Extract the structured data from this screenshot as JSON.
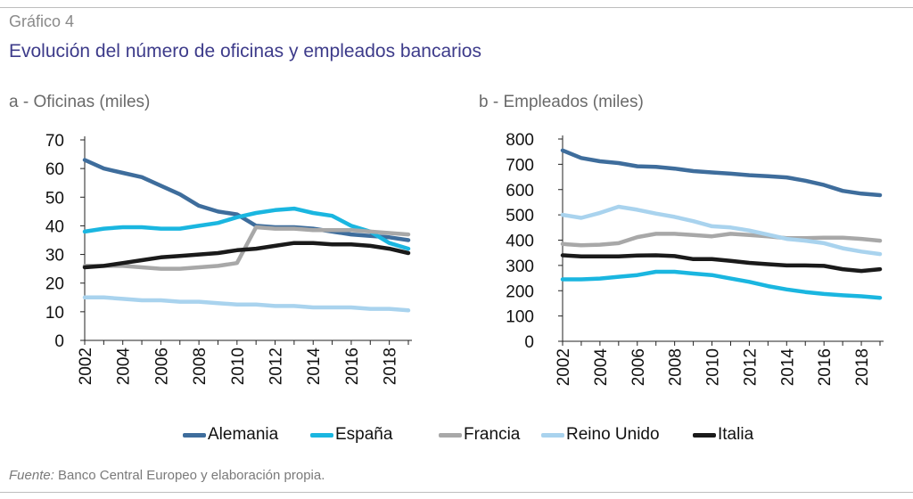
{
  "header": {
    "figure_label": "Gráfico 4",
    "title": "Evolución del número de oficinas y empleados bancarios"
  },
  "legend": [
    {
      "name": "Alemania",
      "color": "#3e6d9c"
    },
    {
      "name": "España",
      "color": "#1ab6e0"
    },
    {
      "name": "Francia",
      "color": "#a8a8a8"
    },
    {
      "name": "Reino Unido",
      "color": "#a9d3ee"
    },
    {
      "name": "Italia",
      "color": "#1a1a1a"
    }
  ],
  "footer": {
    "source_prefix": "Fuente:",
    "source_text": " Banco Central Europeo y elaboración propia."
  },
  "chart_data": [
    {
      "type": "line",
      "title": "a - Oficinas (miles)",
      "x": [
        2002,
        2003,
        2004,
        2005,
        2006,
        2007,
        2008,
        2009,
        2010,
        2011,
        2012,
        2013,
        2014,
        2015,
        2016,
        2017,
        2018,
        2019
      ],
      "x_ticks": [
        "2002",
        "2004",
        "2006",
        "2008",
        "2010",
        "2012",
        "2014",
        "2016",
        "2018"
      ],
      "ylim": [
        0,
        70
      ],
      "y_ticks": [
        0,
        10,
        20,
        30,
        40,
        50,
        60,
        70
      ],
      "grid": false,
      "series": [
        {
          "name": "Alemania",
          "values": [
            63.0,
            60.0,
            58.5,
            57.0,
            54.0,
            51.0,
            47.0,
            45.0,
            44.0,
            40.0,
            39.5,
            39.5,
            39.0,
            38.0,
            37.0,
            36.5,
            36.0,
            35.0
          ]
        },
        {
          "name": "España",
          "values": [
            38.0,
            39.0,
            39.5,
            39.5,
            39.0,
            39.0,
            40.0,
            41.0,
            43.0,
            44.5,
            45.5,
            46.0,
            44.5,
            43.5,
            40.0,
            38.0,
            34.0,
            32.0
          ]
        },
        {
          "name": "Francia",
          "values": [
            26.0,
            26.0,
            26.0,
            25.5,
            25.0,
            25.0,
            25.5,
            26.0,
            27.0,
            39.5,
            39.0,
            39.0,
            38.5,
            38.5,
            38.5,
            38.0,
            37.5,
            37.0
          ]
        },
        {
          "name": "Reino Unido",
          "values": [
            15.0,
            15.0,
            14.5,
            14.0,
            14.0,
            13.5,
            13.5,
            13.0,
            12.5,
            12.5,
            12.0,
            12.0,
            11.5,
            11.5,
            11.5,
            11.0,
            11.0,
            10.5
          ]
        },
        {
          "name": "Italia",
          "values": [
            25.5,
            26.0,
            27.0,
            28.0,
            29.0,
            29.5,
            30.0,
            30.5,
            31.5,
            32.0,
            33.0,
            34.0,
            34.0,
            33.5,
            33.5,
            33.0,
            32.0,
            30.5
          ]
        }
      ]
    },
    {
      "type": "line",
      "title": "b - Empleados (miles)",
      "x": [
        2002,
        2003,
        2004,
        2005,
        2006,
        2007,
        2008,
        2009,
        2010,
        2011,
        2012,
        2013,
        2014,
        2015,
        2016,
        2017,
        2018,
        2019
      ],
      "x_ticks": [
        "2002",
        "2004",
        "2006",
        "2008",
        "2010",
        "2012",
        "2014",
        "2016",
        "2018"
      ],
      "ylim": [
        0,
        800
      ],
      "y_ticks": [
        0,
        100,
        200,
        300,
        400,
        500,
        600,
        700,
        800
      ],
      "grid": false,
      "series": [
        {
          "name": "Alemania",
          "values": [
            755,
            725,
            712,
            705,
            692,
            690,
            683,
            673,
            668,
            663,
            657,
            653,
            648,
            635,
            618,
            595,
            584,
            578
          ]
        },
        {
          "name": "España",
          "values": [
            245,
            245,
            248,
            255,
            262,
            275,
            275,
            268,
            262,
            248,
            235,
            218,
            205,
            195,
            187,
            182,
            178,
            172
          ]
        },
        {
          "name": "Francia",
          "values": [
            385,
            380,
            382,
            388,
            412,
            425,
            425,
            420,
            415,
            425,
            420,
            415,
            408,
            408,
            410,
            410,
            405,
            398
          ]
        },
        {
          "name": "Reino Unido",
          "values": [
            500,
            488,
            508,
            532,
            520,
            505,
            492,
            475,
            455,
            450,
            438,
            422,
            405,
            398,
            388,
            368,
            355,
            345
          ]
        },
        {
          "name": "Italia",
          "values": [
            340,
            336,
            336,
            336,
            339,
            340,
            337,
            325,
            325,
            318,
            310,
            305,
            300,
            300,
            298,
            285,
            278,
            285
          ]
        }
      ]
    }
  ]
}
